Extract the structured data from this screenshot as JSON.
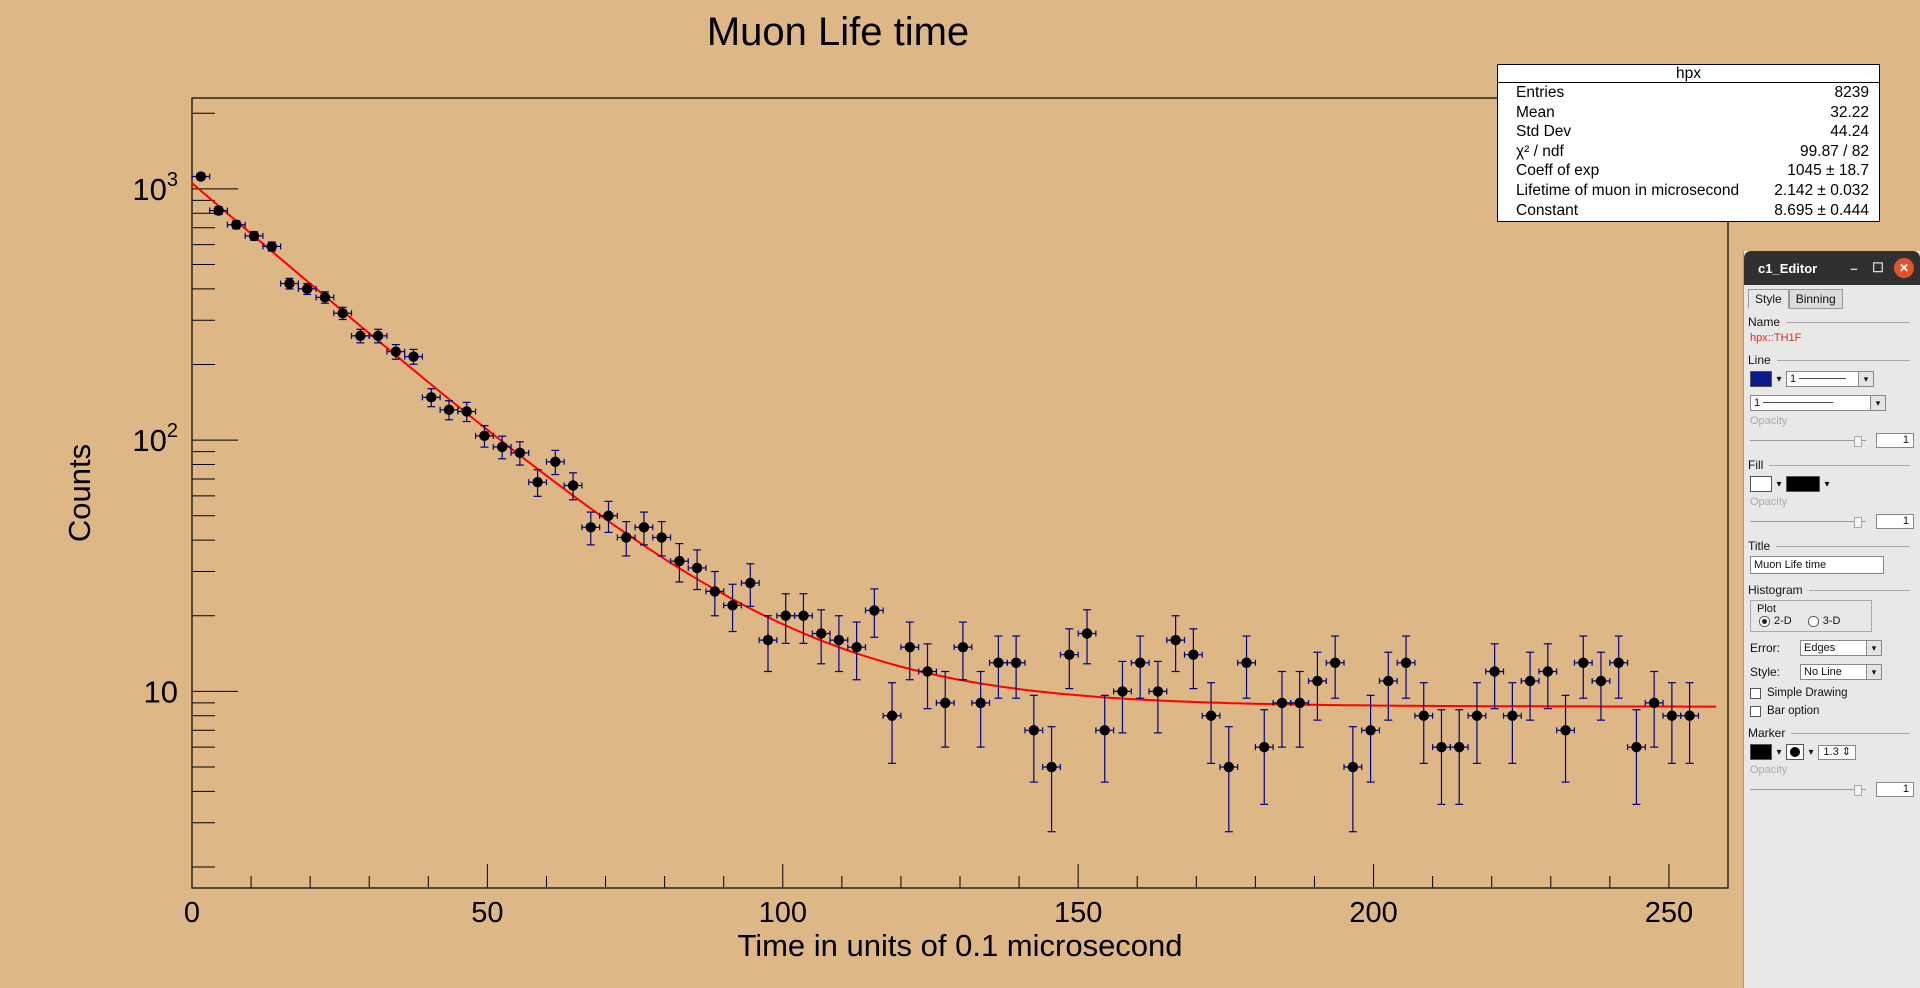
{
  "chart_data": {
    "type": "scatter",
    "title": "Muon Life time",
    "xlabel": "Time in units of 0.1 microsecond",
    "ylabel": "Counts",
    "xlim": [
      0,
      260
    ],
    "ylim": [
      1.65,
      2300
    ],
    "yscale": "log",
    "grid": false,
    "x_ticks": [
      0,
      50,
      100,
      150,
      200,
      250
    ],
    "x_tick_labels": [
      "0",
      "50",
      "100",
      "150",
      "200",
      "250"
    ],
    "y_tick_labels": [
      {
        "value": 1000,
        "base": "10",
        "exp": "3"
      },
      {
        "value": 100,
        "base": "10",
        "exp": "2"
      },
      {
        "value": 10,
        "base": "10",
        "exp": ""
      }
    ],
    "bin_width": 3,
    "series": [
      {
        "style": "markers-with-errorbars",
        "color": "#000000",
        "errorbar_color": "#000080",
        "x": [
          1.5,
          4.5,
          7.5,
          10.5,
          13.5,
          16.5,
          19.5,
          22.5,
          25.5,
          28.5,
          31.5,
          34.5,
          37.5,
          40.5,
          43.5,
          46.5,
          49.5,
          52.5,
          55.5,
          58.5,
          61.5,
          64.5,
          67.5,
          70.5,
          73.5,
          76.5,
          79.5,
          82.5,
          85.5,
          88.5,
          91.5,
          94.5,
          97.5,
          100.5,
          103.5,
          106.5,
          109.5,
          112.5,
          115.5,
          118.5,
          121.5,
          124.5,
          127.5,
          130.5,
          133.5,
          136.5,
          139.5,
          142.5,
          145.5,
          148.5,
          151.5,
          154.5,
          157.5,
          160.5,
          163.5,
          166.5,
          169.5,
          172.5,
          175.5,
          178.5,
          181.5,
          184.5,
          187.5,
          190.5,
          193.5,
          196.5,
          199.5,
          202.5,
          205.5,
          208.5,
          211.5,
          214.5,
          217.5,
          220.5,
          223.5,
          226.5,
          229.5,
          232.5,
          235.5,
          238.5,
          241.5,
          244.5,
          247.5,
          250.5,
          253.5
        ],
        "y": [
          1120,
          820,
          720,
          650,
          590,
          420,
          400,
          370,
          320,
          260,
          260,
          225,
          215,
          148,
          132,
          130,
          104,
          94,
          89,
          68,
          82,
          66,
          45,
          50,
          41,
          45,
          41,
          33,
          31,
          25,
          22,
          27,
          16,
          20,
          20,
          17,
          16,
          15,
          21,
          8,
          15,
          12,
          9,
          15,
          9,
          13,
          13,
          7,
          5,
          14,
          17,
          7,
          10,
          13,
          10,
          16,
          14,
          8,
          5,
          13,
          6,
          9,
          9,
          11,
          13,
          5,
          7,
          11,
          13,
          8,
          6,
          6,
          8,
          12,
          8,
          11,
          12,
          7,
          13,
          11,
          13,
          6,
          9,
          8,
          8
        ]
      },
      {
        "name": "fit",
        "style": "line",
        "color": "#ff0000",
        "model": "exp",
        "coeff_of_exp": 1045,
        "lifetime": 2.142,
        "constant": 8.695,
        "x_range": [
          0,
          258
        ]
      }
    ]
  },
  "stats_box": {
    "title": "hpx",
    "rows": [
      {
        "label": "Entries",
        "value": "8239"
      },
      {
        "label": "Mean",
        "value": "32.22"
      },
      {
        "label": "Std Dev",
        "value": "44.24"
      },
      {
        "label": "χ² / ndf",
        "value": "99.87 / 82"
      },
      {
        "label": "Coeff of exp",
        "value": "1045 ± 18.7"
      },
      {
        "label": "Lifetime of muon in microsecond",
        "value": "2.142 ± 0.032"
      },
      {
        "label": "Constant",
        "value": "8.695 ± 0.444"
      }
    ]
  },
  "editor": {
    "window_title": "c1_Editor",
    "tabs": [
      "Style",
      "Binning"
    ],
    "name_label": "Name",
    "name_value": "hpx::TH1F",
    "line_label": "Line",
    "line_color": "#0a1a8c",
    "line_width": "1",
    "line_style": "1",
    "opacity_label": "Opacity",
    "line_opacity": "1",
    "fill_label": "Fill",
    "fill_color": "#ffffff",
    "fill_pattern_color": "#000000",
    "fill_opacity": "1",
    "title_label": "Title",
    "title_value": "Muon Life time",
    "histogram_label": "Histogram",
    "plot_label": "Plot",
    "plot_2d": "2-D",
    "plot_3d": "3-D",
    "error_label": "Error:",
    "error_value": "Edges",
    "style_label": "Style:",
    "style_value": "No Line",
    "simple_drawing": "Simple Drawing",
    "bar_option": "Bar option",
    "marker_label": "Marker",
    "marker_color": "#000000",
    "marker_size": "1.3",
    "marker_opacity": "1"
  }
}
